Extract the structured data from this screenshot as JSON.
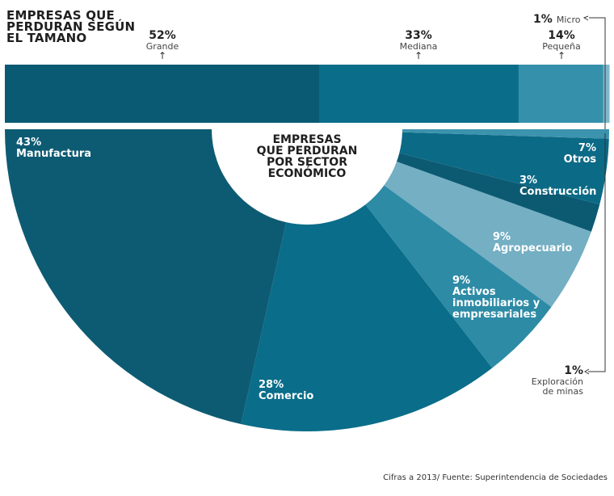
{
  "chart_data": [
    {
      "type": "bar",
      "orientation": "stacked-horizontal",
      "title": "EMPRESAS QUE PERDURAN SEGÚN EL TAMANO",
      "categories": [
        "Grande",
        "Mediana",
        "Pequeña",
        "Micro"
      ],
      "values": [
        52,
        33,
        14,
        1
      ],
      "labels": [
        "52%",
        "33%",
        "14%",
        "1%"
      ],
      "colors": [
        "#0b5a73",
        "#0a6d8a",
        "#3590ab",
        "#7db8cc"
      ]
    },
    {
      "type": "pie",
      "style": "half-donut",
      "title": "EMPRESAS QUE PERDURAN POR SECTOR ECONÓMICO",
      "categories": [
        "Manufactura",
        "Comercio",
        "Activos inmobiliarios y empresariales",
        "Agropecuario",
        "Construcción",
        "Otros",
        "Exploración de minas"
      ],
      "values": [
        43,
        28,
        9,
        9,
        3,
        7,
        1
      ],
      "labels": [
        "43%",
        "28%",
        "9%",
        "9%",
        "3%",
        "7%",
        "1%"
      ],
      "colors": [
        "#0d5b73",
        "#0a6d8a",
        "#2d8ba6",
        "#74afc3",
        "#0b5a72",
        "#0b6a86",
        "#3c93ad"
      ]
    }
  ],
  "title_lines": [
    "EMPRESAS QUE",
    "PERDURAN SEGÚN",
    "EL TAMANO"
  ],
  "center_lines": [
    "EMPRESAS",
    "QUE PERDURAN",
    "POR SECTOR",
    "ECONÓMICO"
  ],
  "sector_labels": {
    "manufactura": [
      "43%",
      "Manufactura"
    ],
    "comercio": [
      "28%",
      "Comercio"
    ],
    "activos": [
      "9%",
      "Activos",
      "inmobiliarios y",
      "empresariales"
    ],
    "agro": [
      "9%",
      "Agropecuario"
    ],
    "construccion": [
      "3%",
      "Construcción"
    ],
    "otros": [
      "7%",
      "Otros"
    ],
    "exploracion": [
      "1%",
      "Exploración",
      "de minas"
    ]
  },
  "size_labels": {
    "grande": [
      "52%",
      "Grande"
    ],
    "mediana": [
      "33%",
      "Mediana"
    ],
    "pequena": [
      "14%",
      "Pequeña"
    ],
    "micro": [
      "1%",
      "Micro"
    ]
  },
  "footer": "Cifras a 2013/ Fuente: Superintendencia de Sociedades"
}
